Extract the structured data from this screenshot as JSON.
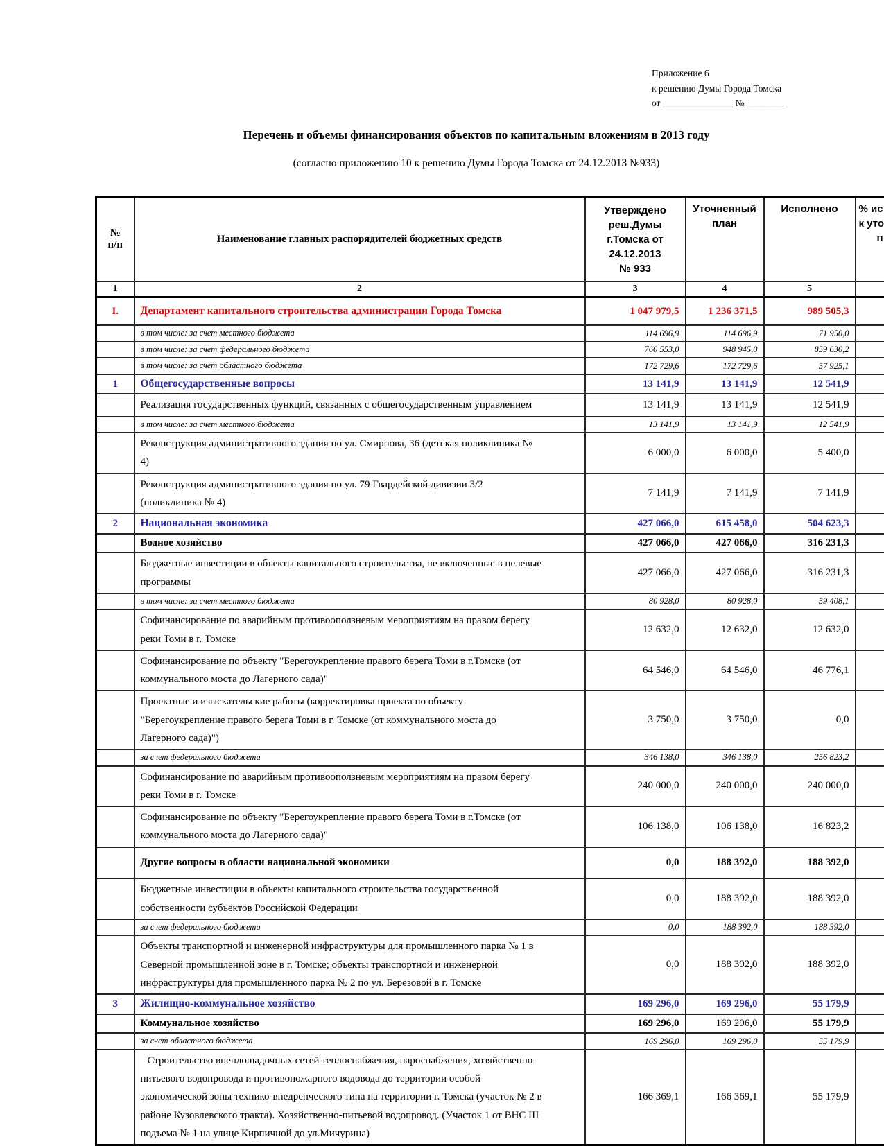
{
  "colors": {
    "section": "#2a2aa0",
    "red": "#cf0e0e"
  },
  "page": {
    "annotation_lines": [
      "Приложение 6",
      "к решению Думы Города Томска",
      "от _______________ № ________"
    ],
    "title": "Перечень и объемы финансирования объектов по капитальным вложениям в 2013 году",
    "subtitle": "(согласно приложению 10 к решению Думы Города Томска от 24.12.2013 №933)"
  },
  "table": {
    "headers": {
      "num_lines": [
        "№",
        "п/п"
      ],
      "name": "Наименование главных распорядителей бюджетных средств",
      "approved_lines": [
        "Утверждено",
        "реш.Думы",
        "г.Томска от",
        "24.12.2013",
        "№ 933"
      ],
      "plan_lines": [
        "Уточненный",
        "план"
      ],
      "executed": "Исполнено",
      "percent_lines": [
        "% ис",
        "к уто",
        "п"
      ]
    },
    "col_numbers": [
      "1",
      "2",
      "3",
      "4",
      "5",
      ""
    ],
    "rows": [
      {
        "num": "I.",
        "name": "Департамент капитального строительства администрации Города Томска",
        "v": [
          "1 047 979,5",
          "1 236 371,5",
          "989 505,3"
        ],
        "cls": "red pad"
      },
      {
        "num": "",
        "name": "в том числе: за счет местного бюджета",
        "v": [
          "114 696,9",
          "114 696,9",
          "71 950,0"
        ],
        "cls": "sub"
      },
      {
        "num": "",
        "name": "в том числе: за счет федерального бюджета",
        "v": [
          "760 553,0",
          "948 945,0",
          "859 630,2"
        ],
        "cls": "sub"
      },
      {
        "num": "",
        "name": "в том числе: за счет областного бюджета",
        "v": [
          "172 729,6",
          "172 729,6",
          "57 925,1"
        ],
        "cls": "sub"
      },
      {
        "num": "1",
        "name": "Общегосударственные вопросы",
        "v": [
          "13 141,9",
          "13 141,9",
          "12 541,9"
        ],
        "cls": "section"
      },
      {
        "num": "",
        "name": "Реализация государственных функций, связанных с общегосударственным управлением",
        "v": [
          "13 141,9",
          "13 141,9",
          "12 541,9"
        ],
        "cls": "normal"
      },
      {
        "num": "",
        "name": "в том числе: за счет местного бюджета",
        "v": [
          "13 141,9",
          "13 141,9",
          "12 541,9"
        ],
        "cls": "sub"
      },
      {
        "num": "",
        "name": "Реконструкция административного здания по ул. Смирнова, 36 (детская поликлиника № 4)",
        "v": [
          "6 000,0",
          "6 000,0",
          "5 400,0"
        ],
        "cls": "normal"
      },
      {
        "num": "",
        "name": "Реконструкция административного здания по ул. 79 Гвардейской дивизии 3/2 (поликлиника № 4)",
        "v": [
          "7 141,9",
          "7 141,9",
          "7 141,9"
        ],
        "cls": "normal"
      },
      {
        "num": "2",
        "name": "Национальная экономика",
        "v": [
          "427 066,0",
          "615 458,0",
          "504 623,3"
        ],
        "cls": "section"
      },
      {
        "num": "",
        "name": "Водное хозяйство",
        "v": [
          "427 066,0",
          "427 066,0",
          "316 231,3"
        ],
        "cls": "bold"
      },
      {
        "num": "",
        "name": "Бюджетные инвестиции в объекты капитального строительства, не включенные в целевые программы",
        "v": [
          "427 066,0",
          "427 066,0",
          "316 231,3"
        ],
        "cls": "normal"
      },
      {
        "num": "",
        "name": "в том числе: за счет местного бюджета",
        "v": [
          "80 928,0",
          "80 928,0",
          "59 408,1"
        ],
        "cls": "sub"
      },
      {
        "num": "",
        "name": "Софинансирование по аварийным противооползневым мероприятиям на правом берегу реки Томи в г. Томске",
        "v": [
          "12 632,0",
          "12 632,0",
          "12 632,0"
        ],
        "cls": "normal"
      },
      {
        "num": "",
        "name": "Софинансирование по объекту \"Берегоукрепление  правого берега Томи в г.Томске (от коммунального моста до Лагерного сада)\"",
        "v": [
          "64 546,0",
          "64 546,0",
          "46 776,1"
        ],
        "cls": "normal"
      },
      {
        "num": "",
        "name": "Проектные и изыскательские работы (корректировка проекта по объекту \"Берегоукрепление правого берега Томи в г. Томске (от коммунального моста до Лагерного сада)\")",
        "v": [
          "3 750,0",
          "3 750,0",
          "0,0"
        ],
        "cls": "normal"
      },
      {
        "num": "",
        "name": "за счет федерального бюджета",
        "v": [
          "346 138,0",
          "346 138,0",
          "256 823,2"
        ],
        "cls": "sub"
      },
      {
        "num": "",
        "name": "Софинансирование по аварийным противооползневым мероприятиям на правом берегу реки Томи в г. Томске",
        "v": [
          "240 000,0",
          "240 000,0",
          "240 000,0"
        ],
        "cls": "normal"
      },
      {
        "num": "",
        "name": "Софинансирование по объекту \"Берегоукрепление  правого берега Томи в г.Томске (от коммунального моста до Лагерного сада)\"",
        "v": [
          "106 138,0",
          "106 138,0",
          "16 823,2"
        ],
        "cls": "normal"
      },
      {
        "num": "",
        "name": "Другие вопросы в области национальной экономики",
        "v": [
          "0,0",
          "188 392,0",
          "188 392,0"
        ],
        "cls": "bold tall"
      },
      {
        "num": "",
        "name": "Бюджетные инвестиции в объекты капитального строительства государственной собственности субъектов Российской Федерации",
        "v": [
          "0,0",
          "188 392,0",
          "188 392,0"
        ],
        "cls": "normal"
      },
      {
        "num": "",
        "name": "за счет федерального бюджета",
        "v": [
          "0,0",
          "188 392,0",
          "188 392,0"
        ],
        "cls": "sub"
      },
      {
        "num": "",
        "name": "Объекты транспортной и инженерной инфраструктуры для промышленного парка № 1 в Северной промышленной зоне в г. Томске; объекты транспортной и инженерной инфраструктуры для промышленного парка № 2 по ул. Березовой в г. Томске",
        "v": [
          "0,0",
          "188 392,0",
          "188 392,0"
        ],
        "cls": "normal"
      },
      {
        "num": "3",
        "name": "Жилищно-коммунальное хозяйство",
        "v": [
          "169 296,0",
          "169 296,0",
          "55 179,9"
        ],
        "cls": "section"
      },
      {
        "num": "",
        "name": "Коммунальное хозяйство",
        "v": [
          "169 296,0",
          "169 296,0",
          "55 179,9"
        ],
        "cls": "bold",
        "vb": [
          1,
          0,
          1
        ]
      },
      {
        "num": "",
        "name": "за счет областного бюджета",
        "v": [
          "169 296,0",
          "169 296,0",
          "55 179,9"
        ],
        "cls": "sub"
      },
      {
        "num": "",
        "name": "Строительство внеплощадочных сетей теплоснабжения, пароснабжения, хозяйственно-питьевого водопровода и противопожарного водовода до территории особой экономической зоны технико-внедренческого типа на территории г. Томска (участок № 2 в районе Кузовлевского тракта). Хозяйственно-питьевой водопровод. (Участок 1 от ВНС Ш подъема № 1 на улице Кирпичной до ул.Мичурина)",
        "v": [
          "166 369,1",
          "166 369,1",
          "55 179,9"
        ],
        "cls": "normal",
        "indent": true
      }
    ]
  }
}
